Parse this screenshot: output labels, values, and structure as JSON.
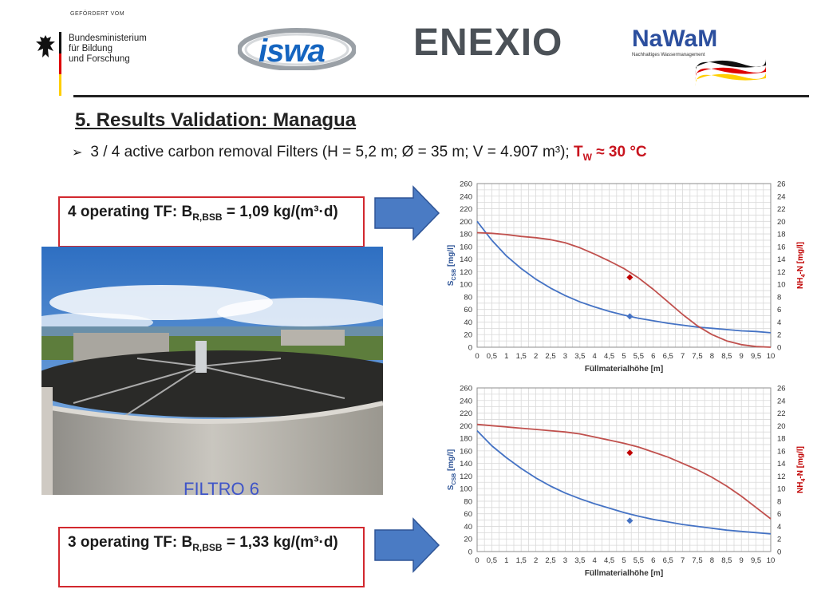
{
  "header": {
    "bmbf": {
      "funded_by": "GEFÖRDERT VOM",
      "ministry": "Bundesministerium\nfür Bildung\nund Forschung"
    },
    "iswa": "iswa",
    "enexio": "ENEXIO",
    "nawam": {
      "name": "NaWaM",
      "subtitle": "Nachhaltiges Wassermanagement"
    }
  },
  "title": "5. Results Validation: Managua",
  "bullet": {
    "text": "3 / 4 active carbon removal Filters (H = 5,2 m; Ø = 35 m; V = 4.907 m³); ",
    "temp_T": "T",
    "temp_sub": "W",
    "temp_value": " ≈ 30 °C"
  },
  "boxes": {
    "four": {
      "pre": "4 operating TF: B",
      "sub": "R,BSB",
      "post": " = 1,09 kg/(m³·d)"
    },
    "three": {
      "pre": "3 operating TF: B",
      "sub": "R,BSB",
      "post": " = 1,33 kg/(m³·d)"
    }
  },
  "photo": {
    "sign_text": "FILTRO 6"
  },
  "colors": {
    "blue": "#4472c4",
    "red": "#c0504d",
    "box_border": "#d2282e",
    "arrow": "#4a7bc4"
  },
  "chart_data": [
    {
      "type": "line",
      "xlabel": "Füllmaterialhöhe [m]",
      "ylabel_left": {
        "main": "S",
        "sub": "CSB",
        "unit": " [mg/l]"
      },
      "ylabel_right": {
        "main": "NH",
        "sub": "4",
        "unit": "-N [mg/l]"
      },
      "xlim": [
        0,
        10
      ],
      "x_ticks": [
        "0",
        "0,5",
        "1",
        "1,5",
        "2",
        "2,5",
        "3",
        "3,5",
        "4",
        "4,5",
        "5",
        "5,5",
        "6",
        "6,5",
        "7",
        "7,5",
        "8",
        "8,5",
        "9",
        "9,5",
        "10"
      ],
      "ylim_left": [
        0,
        260
      ],
      "y_ticks_left": [
        "0",
        "20",
        "40",
        "60",
        "80",
        "100",
        "120",
        "140",
        "160",
        "180",
        "200",
        "220",
        "240",
        "260"
      ],
      "ylim_right": [
        0,
        26
      ],
      "y_ticks_right": [
        "0",
        "2",
        "4",
        "6",
        "8",
        "10",
        "12",
        "14",
        "16",
        "18",
        "20",
        "22",
        "24",
        "26"
      ],
      "grid": true,
      "series": [
        {
          "axis": "left",
          "color": "#4472c4",
          "x": [
            0,
            0.5,
            1,
            1.5,
            2,
            2.5,
            3,
            3.5,
            4,
            4.5,
            5,
            5.5,
            6,
            6.5,
            7,
            7.5,
            8,
            8.5,
            9,
            9.5,
            10
          ],
          "y": [
            200,
            170,
            145,
            125,
            108,
            94,
            82,
            72,
            64,
            57,
            51,
            46,
            42,
            38,
            35,
            32,
            30,
            28,
            26,
            25,
            23
          ]
        },
        {
          "axis": "right",
          "color": "#c0504d",
          "x": [
            0,
            0.5,
            1,
            1.5,
            2,
            2.5,
            3,
            3.5,
            4,
            4.5,
            5,
            5.5,
            6,
            6.5,
            7,
            7.5,
            8,
            8.5,
            9,
            9.5,
            10
          ],
          "y": [
            18.2,
            18.1,
            17.9,
            17.6,
            17.4,
            17.1,
            16.6,
            15.8,
            14.8,
            13.7,
            12.5,
            11.0,
            9.2,
            7.2,
            5.2,
            3.4,
            2.0,
            1.0,
            0.4,
            0.1,
            0.0
          ]
        }
      ],
      "measured_points": [
        {
          "axis": "left",
          "x": 5.2,
          "y": 49,
          "color": "#4472c4"
        },
        {
          "axis": "right",
          "x": 5.2,
          "y": 11.1,
          "color": "#c00000"
        }
      ]
    },
    {
      "type": "line",
      "xlabel": "Füllmaterialhöhe [m]",
      "ylabel_left": {
        "main": "S",
        "sub": "CSB",
        "unit": " [mg/l]"
      },
      "ylabel_right": {
        "main": "NH",
        "sub": "4",
        "unit": "-N [mg/l]"
      },
      "xlim": [
        0,
        10
      ],
      "x_ticks": [
        "0",
        "0,5",
        "1",
        "1,5",
        "2",
        "2,5",
        "3",
        "3,5",
        "4",
        "4,5",
        "5",
        "5,5",
        "6",
        "6,5",
        "7",
        "7,5",
        "8",
        "8,5",
        "9",
        "9,5",
        "10"
      ],
      "ylim_left": [
        0,
        260
      ],
      "y_ticks_left": [
        "0",
        "20",
        "40",
        "60",
        "80",
        "100",
        "120",
        "140",
        "160",
        "180",
        "200",
        "220",
        "240",
        "260"
      ],
      "ylim_right": [
        0,
        26
      ],
      "y_ticks_right": [
        "0",
        "2",
        "4",
        "6",
        "8",
        "10",
        "12",
        "14",
        "16",
        "18",
        "20",
        "22",
        "24",
        "26"
      ],
      "grid": true,
      "series": [
        {
          "axis": "left",
          "color": "#4472c4",
          "x": [
            0,
            0.5,
            1,
            1.5,
            2,
            2.5,
            3,
            3.5,
            4,
            4.5,
            5,
            5.5,
            6,
            6.5,
            7,
            7.5,
            8,
            8.5,
            9,
            9.5,
            10
          ],
          "y": [
            192,
            168,
            149,
            132,
            117,
            104,
            93,
            84,
            76,
            69,
            62,
            56,
            51,
            47,
            43,
            40,
            37,
            34,
            32,
            30,
            28
          ]
        },
        {
          "axis": "right",
          "color": "#c0504d",
          "x": [
            0,
            0.5,
            1,
            1.5,
            2,
            2.5,
            3,
            3.5,
            4,
            4.5,
            5,
            5.5,
            6,
            6.5,
            7,
            7.5,
            8,
            8.5,
            9,
            9.5,
            10
          ],
          "y": [
            20.2,
            20.0,
            19.8,
            19.6,
            19.4,
            19.2,
            19.0,
            18.7,
            18.2,
            17.7,
            17.2,
            16.6,
            15.8,
            15.0,
            14.0,
            13.0,
            11.8,
            10.4,
            8.8,
            7.0,
            5.2
          ]
        }
      ],
      "measured_points": [
        {
          "axis": "left",
          "x": 5.2,
          "y": 49,
          "color": "#4472c4"
        },
        {
          "axis": "right",
          "x": 5.2,
          "y": 15.7,
          "color": "#c00000"
        }
      ]
    }
  ]
}
